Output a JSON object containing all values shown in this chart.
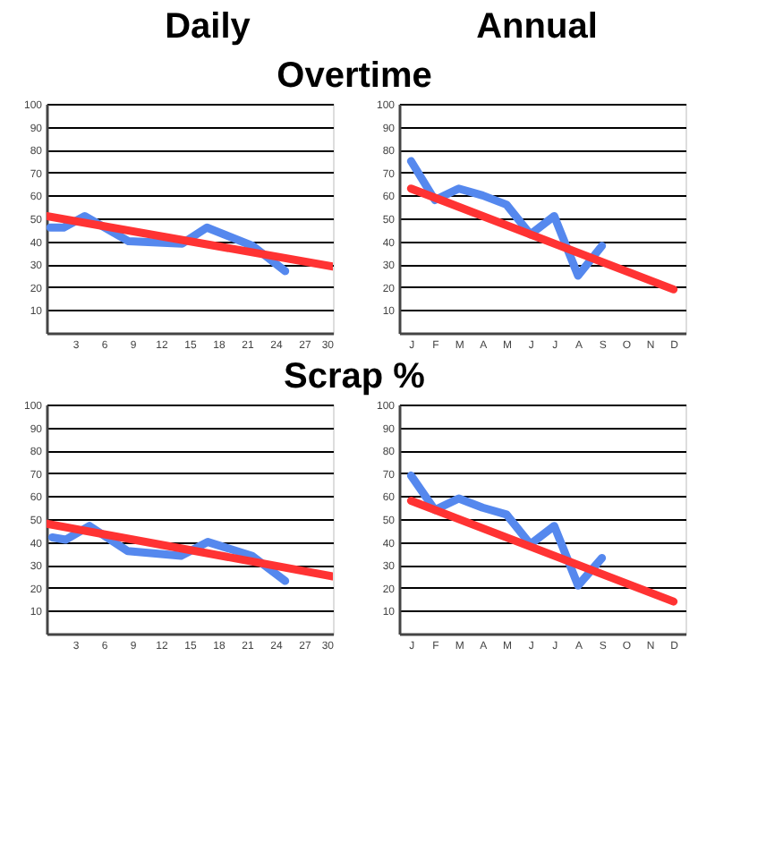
{
  "chart_data": [
    {
      "type": "line",
      "title": "Overtime",
      "annotations": [
        "Daily"
      ],
      "xlim": [
        0,
        30
      ],
      "xticks": [
        3,
        6,
        9,
        12,
        15,
        18,
        21,
        24,
        27,
        30
      ],
      "ylim": [
        0,
        100
      ],
      "yticks": [
        10,
        20,
        30,
        40,
        50,
        60,
        70,
        80,
        90,
        100
      ],
      "grid": "y",
      "line_style": "solid",
      "series": [
        {
          "color": "#5588ee",
          "x": [
            0.4,
            1.8,
            4,
            8.6,
            14.2,
            16.8,
            21.6,
            25
          ],
          "values": [
            46,
            46,
            51,
            40,
            39,
            46,
            38,
            27
          ]
        },
        {
          "color": "#ff3333",
          "x": [
            0,
            30
          ],
          "values": [
            51,
            29
          ]
        }
      ]
    },
    {
      "type": "line",
      "annotations": [
        "Annual"
      ],
      "categories": [
        "J",
        "F",
        "M",
        "A",
        "M",
        "J",
        "J",
        "A",
        "S",
        "O",
        "N",
        "D"
      ],
      "ylim": [
        0,
        100
      ],
      "yticks": [
        10,
        20,
        30,
        40,
        50,
        60,
        70,
        80,
        90,
        100
      ],
      "grid": "y",
      "line_style": "solid",
      "series": [
        {
          "color": "#5588ee",
          "values": [
            75,
            58,
            63,
            60,
            56,
            43,
            51,
            25,
            38,
            null,
            null,
            null
          ]
        },
        {
          "color": "#ff3333",
          "values": [
            63,
            null,
            null,
            null,
            null,
            null,
            null,
            null,
            null,
            null,
            null,
            19
          ]
        }
      ]
    },
    {
      "type": "line",
      "title": "Scrap %",
      "xlim": [
        0,
        30
      ],
      "xticks": [
        3,
        6,
        9,
        12,
        15,
        18,
        21,
        24,
        27,
        30
      ],
      "ylim": [
        0,
        100
      ],
      "yticks": [
        10,
        20,
        30,
        40,
        50,
        60,
        70,
        80,
        90,
        100
      ],
      "grid": "y",
      "line_style": "solid",
      "series": [
        {
          "color": "#5588ee",
          "x": [
            0.6,
            2,
            4.5,
            8.5,
            14.1,
            16.9,
            21.5,
            25
          ],
          "values": [
            42,
            41,
            47,
            36,
            34,
            40,
            34,
            23
          ]
        },
        {
          "color": "#ff3333",
          "x": [
            0,
            30
          ],
          "values": [
            48,
            25
          ]
        }
      ]
    },
    {
      "type": "line",
      "categories": [
        "J",
        "F",
        "M",
        "A",
        "M",
        "J",
        "J",
        "A",
        "S",
        "O",
        "N",
        "D"
      ],
      "ylim": [
        0,
        100
      ],
      "yticks": [
        10,
        20,
        30,
        40,
        50,
        60,
        70,
        80,
        90,
        100
      ],
      "grid": "y",
      "line_style": "solid",
      "series": [
        {
          "color": "#5588ee",
          "values": [
            69,
            54,
            59,
            55,
            52,
            39,
            47,
            21,
            33,
            null,
            null,
            null
          ]
        },
        {
          "color": "#ff3333",
          "values": [
            58,
            null,
            null,
            null,
            null,
            null,
            null,
            null,
            null,
            null,
            null,
            14
          ]
        }
      ]
    }
  ]
}
